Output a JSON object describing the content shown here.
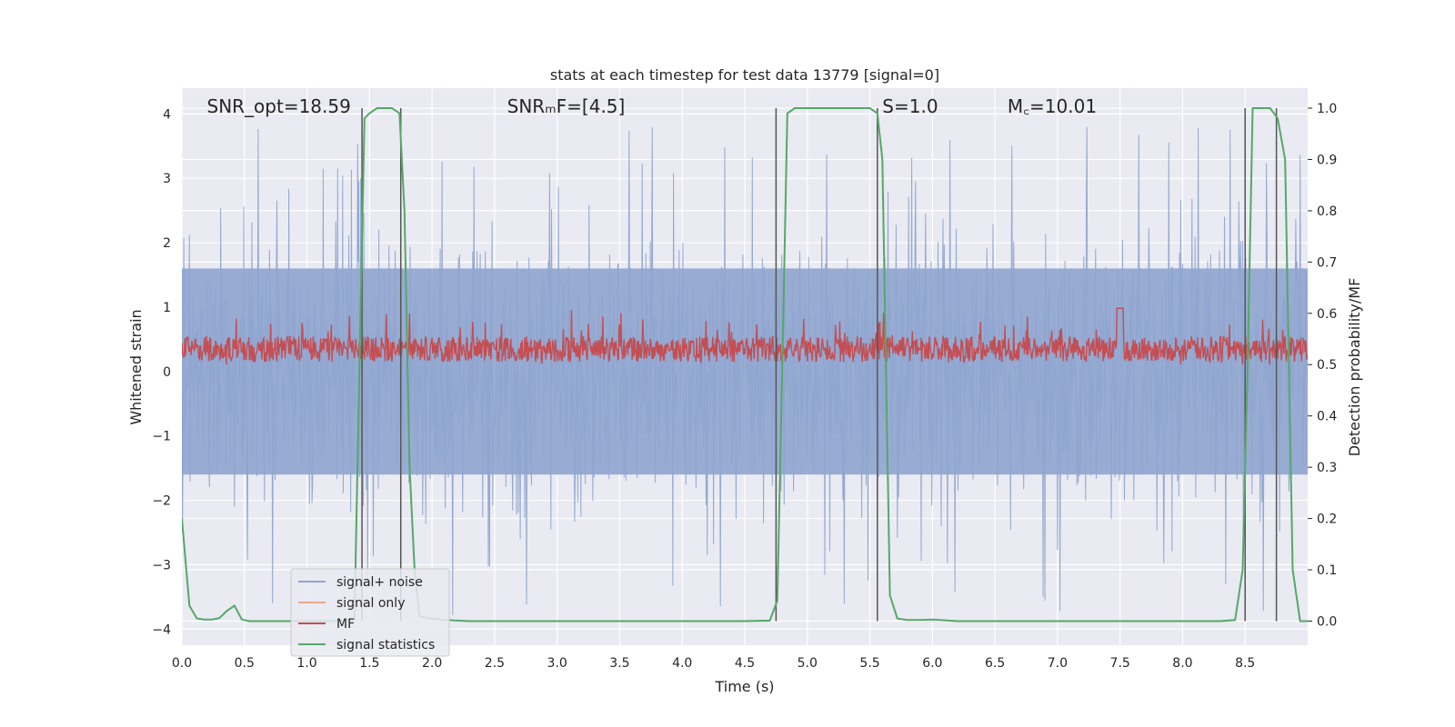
{
  "chart_data": {
    "type": "line",
    "title": "stats at each timestep for test data 13779 [signal=0]",
    "xlabel": "Time (s)",
    "ylabel": "Whitened strain",
    "y2label": "Detection probability/MF",
    "xlim": [
      0,
      9.0
    ],
    "ylim": [
      -4.25,
      4.4
    ],
    "y2lim": [
      -0.047,
      1.039
    ],
    "xticks": [
      "0.0",
      "0.5",
      "1.0",
      "1.5",
      "2.0",
      "2.5",
      "3.0",
      "3.5",
      "4.0",
      "4.5",
      "5.0",
      "5.5",
      "6.0",
      "6.5",
      "7.0",
      "7.5",
      "8.0",
      "8.5"
    ],
    "yticks": [
      "−4",
      "−3",
      "−2",
      "−1",
      "0",
      "1",
      "2",
      "3",
      "4"
    ],
    "y2ticks": [
      "0.0",
      "0.1",
      "0.2",
      "0.3",
      "0.4",
      "0.5",
      "0.6",
      "0.7",
      "0.8",
      "0.9",
      "1.0"
    ],
    "grid": true,
    "legend_position": "lower-left",
    "annotations": [
      {
        "text": "SNR_opt=18.59",
        "x": 0.2
      },
      {
        "text": "SNRₘF=[4.5]",
        "x": 2.6
      },
      {
        "text": "S=1.0",
        "x": 5.6
      },
      {
        "text": "M꜀=10.01",
        "x": 6.6
      }
    ],
    "vlines": [
      1.44,
      1.75,
      4.75,
      5.56,
      8.5,
      8.75
    ],
    "series": [
      {
        "name": "signal+ noise",
        "color": "#8fa5cf",
        "axis": "left",
        "noise_amplitude": [
          -1.6,
          1.6
        ],
        "peak_range": [
          -3.9,
          3.8
        ]
      },
      {
        "name": "signal only",
        "color": "#e8a88a",
        "axis": "left",
        "values": []
      },
      {
        "name": "MF",
        "color": "#c44e52",
        "axis": "right",
        "mean": 0.53,
        "range": [
          0.5,
          0.62
        ]
      },
      {
        "name": "signal statistics",
        "color": "#55a868",
        "axis": "right",
        "x": [
          0.0,
          0.06,
          0.12,
          0.18,
          0.24,
          0.3,
          0.36,
          0.42,
          0.48,
          0.54,
          0.6,
          0.8,
          1.0,
          1.2,
          1.38,
          1.42,
          1.46,
          1.5,
          1.56,
          1.62,
          1.68,
          1.74,
          1.78,
          1.82,
          1.86,
          1.9,
          1.96,
          2.1,
          2.3,
          2.6,
          3.0,
          3.5,
          4.0,
          4.5,
          4.7,
          4.76,
          4.8,
          4.84,
          4.9,
          5.0,
          5.2,
          5.4,
          5.5,
          5.56,
          5.6,
          5.66,
          5.72,
          5.8,
          5.9,
          6.0,
          6.2,
          6.5,
          7.0,
          7.5,
          8.0,
          8.3,
          8.42,
          8.48,
          8.52,
          8.56,
          8.62,
          8.7,
          8.76,
          8.82,
          8.88,
          8.94,
          9.0
        ],
        "y": [
          0.2,
          0.03,
          0.005,
          0.003,
          0.003,
          0.006,
          0.02,
          0.03,
          0.003,
          0.0,
          0.0,
          0.0,
          0.0,
          0.0,
          0.003,
          0.5,
          0.98,
          0.99,
          1.0,
          1.0,
          1.0,
          0.99,
          0.8,
          0.3,
          0.1,
          0.01,
          0.006,
          0.002,
          0.0,
          0.0,
          0.0,
          0.0,
          0.0,
          0.0,
          0.001,
          0.04,
          0.5,
          0.99,
          1.0,
          1.0,
          1.0,
          1.0,
          1.0,
          0.99,
          0.9,
          0.05,
          0.005,
          0.002,
          0.002,
          0.003,
          0.0,
          0.0,
          0.0,
          0.0,
          0.0,
          0.0,
          0.002,
          0.1,
          0.5,
          1.0,
          1.0,
          1.0,
          0.98,
          0.9,
          0.1,
          0.0,
          0.0
        ]
      }
    ]
  }
}
